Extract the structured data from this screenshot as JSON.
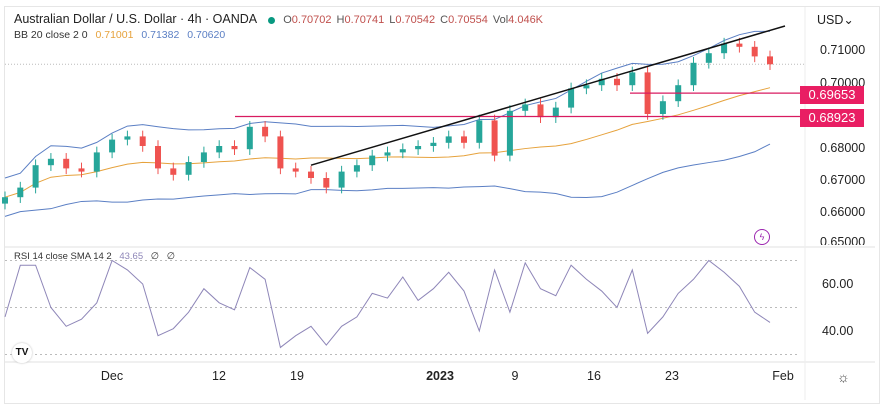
{
  "header": {
    "symbol_title": "Australian Dollar / U.S. Dollar · 4h · OANDA",
    "ohlc": {
      "o_label": "O",
      "o": "0.70702",
      "h_label": "H",
      "h": "0.70741",
      "l_label": "L",
      "l": "0.70542",
      "c_label": "C",
      "c": "0.70554",
      "vol_label": "Vol",
      "vol": "4.046K"
    },
    "bb": {
      "label": "BB 20 close 2 0",
      "basis": "0.71001",
      "upper": "0.71382",
      "lower": "0.70620"
    },
    "rsi": {
      "label": "RSI 14 close SMA 14 2",
      "value": "43.65",
      "extra1": "∅",
      "extra2": "∅"
    }
  },
  "price_axis": {
    "currency": "USD",
    "ticks": [
      "0.71000",
      "0.70000",
      "0.68000",
      "0.67000",
      "0.66000",
      "0.65000"
    ]
  },
  "rsi_axis": {
    "ticks": [
      "60.00",
      "40.00"
    ]
  },
  "time_axis": {
    "ticks": [
      "Dec",
      "12",
      "19",
      "2023",
      "9",
      "16",
      "23",
      "Feb"
    ]
  },
  "price_tags": [
    "0.69653",
    "0.68923"
  ],
  "colors": {
    "up": "#26a69a",
    "down": "#ef5350",
    "bb_basis": "#e6a23c",
    "bb_band": "#5b7fc4",
    "rsi": "#8e86b8",
    "hline": "#d81b60",
    "trend": "#111111"
  },
  "chart_data": [
    {
      "type": "candlestick",
      "title": "Australian Dollar / U.S. Dollar · 4h · OANDA",
      "dates": [
        "2022-11-22",
        "2022-11-23",
        "2022-11-24",
        "2022-11-25",
        "2022-11-28",
        "2022-11-29",
        "2022-11-30",
        "2022-12-01",
        "2022-12-02",
        "2022-12-05",
        "2022-12-06",
        "2022-12-07",
        "2022-12-08",
        "2022-12-09",
        "2022-12-12",
        "2022-12-13",
        "2022-12-14",
        "2022-12-15",
        "2022-12-16",
        "2022-12-19",
        "2022-12-20",
        "2022-12-21",
        "2022-12-22",
        "2022-12-23",
        "2022-12-26",
        "2022-12-27",
        "2022-12-28",
        "2022-12-29",
        "2022-12-30",
        "2023-01-02",
        "2023-01-03",
        "2023-01-04",
        "2023-01-05",
        "2023-01-06",
        "2023-01-09",
        "2023-01-10",
        "2023-01-11",
        "2023-01-12",
        "2023-01-13",
        "2023-01-16",
        "2023-01-17",
        "2023-01-18",
        "2023-01-19",
        "2023-01-20",
        "2023-01-23",
        "2023-01-24",
        "2023-01-25",
        "2023-01-26",
        "2023-01-27",
        "2023-01-30",
        "2023-01-31"
      ],
      "close": [
        0.664,
        0.667,
        0.674,
        0.676,
        0.673,
        0.672,
        0.678,
        0.682,
        0.683,
        0.68,
        0.673,
        0.671,
        0.675,
        0.678,
        0.68,
        0.679,
        0.686,
        0.683,
        0.673,
        0.672,
        0.67,
        0.667,
        0.672,
        0.674,
        0.677,
        0.678,
        0.679,
        0.68,
        0.681,
        0.683,
        0.681,
        0.688,
        0.677,
        0.691,
        0.693,
        0.689,
        0.692,
        0.698,
        0.699,
        0.701,
        0.699,
        0.703,
        0.69,
        0.694,
        0.699,
        0.706,
        0.709,
        0.712,
        0.711,
        0.708,
        0.70554
      ],
      "ylim": [
        0.645,
        0.718
      ],
      "horizontal_levels": [
        0.69653,
        0.68923
      ],
      "trendline": [
        {
          "date": "2022-12-20",
          "price": 0.674
        },
        {
          "date": "2023-02-01",
          "price": 0.7175
        }
      ],
      "indicator": "Bollinger Bands 20, 2"
    },
    {
      "type": "line",
      "title": "RSI 14 close SMA 14 2",
      "values": [
        46,
        68,
        68,
        50,
        42,
        45,
        52,
        70,
        66,
        60,
        38,
        41,
        48,
        58,
        52,
        49,
        67,
        62,
        33,
        38,
        42,
        34,
        42,
        46,
        56,
        54,
        63,
        53,
        58,
        65,
        57,
        40,
        66,
        48,
        69,
        58,
        55,
        68,
        62,
        57,
        50,
        66,
        39,
        46,
        56,
        62,
        70,
        65,
        59,
        48,
        43.65
      ],
      "ylim": [
        25,
        78
      ],
      "levels": [
        70,
        50,
        30
      ]
    }
  ]
}
